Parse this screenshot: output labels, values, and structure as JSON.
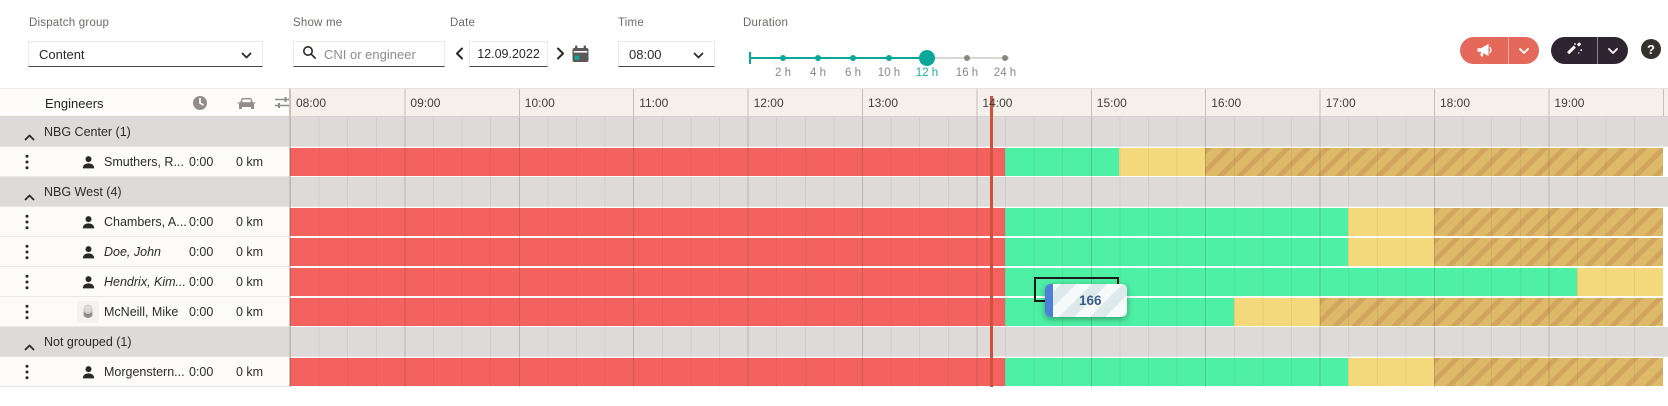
{
  "toolbar": {
    "dispatch_group": {
      "label": "Dispatch group",
      "value": "Content"
    },
    "show_me": {
      "label": "Show me",
      "placeholder": "CNI or engineer"
    },
    "date": {
      "label": "Date",
      "value": "12.09.2022"
    },
    "time": {
      "label": "Time",
      "value": "08:00"
    },
    "duration": {
      "label": "Duration",
      "ticks": [
        "2 h",
        "4 h",
        "6 h",
        "10 h",
        "12 h",
        "16 h",
        "24 h"
      ],
      "selected": "12 h",
      "selected_index": 4
    },
    "help_label": "?"
  },
  "grid": {
    "engineers_label": "Engineers",
    "header_icons": [
      "clock-icon",
      "car-icon",
      "filters-icon"
    ],
    "hours": [
      "08:00",
      "09:00",
      "10:00",
      "11:00",
      "12:00",
      "13:00",
      "14:00",
      "15:00",
      "16:00",
      "17:00",
      "18:00",
      "19:00"
    ],
    "current_time_hour": 14.13,
    "groups": [
      {
        "label": "NBG Center (1)",
        "engineers": [
          {
            "name": "Smuthers, R...",
            "italic": false,
            "avatar": "person",
            "time": "0:00",
            "distance": "0 km",
            "segments": [
              {
                "type": "elapsed",
                "start": 8,
                "end": 14.25
              },
              {
                "type": "available",
                "start": 14.25,
                "end": 15.25
              },
              {
                "type": "overtime",
                "start": 15.25,
                "end": 16
              },
              {
                "type": "unavailable",
                "start": 16,
                "end": 20
              }
            ]
          }
        ]
      },
      {
        "label": "NBG West (4)",
        "engineers": [
          {
            "name": "Chambers, A...",
            "italic": false,
            "avatar": "person",
            "time": "0:00",
            "distance": "0 km",
            "segments": [
              {
                "type": "elapsed",
                "start": 8,
                "end": 14.25
              },
              {
                "type": "available",
                "start": 14.25,
                "end": 17.25
              },
              {
                "type": "overtime",
                "start": 17.25,
                "end": 18
              },
              {
                "type": "unavailable",
                "start": 18,
                "end": 20
              }
            ]
          },
          {
            "name": "Doe, John",
            "italic": true,
            "avatar": "person",
            "time": "0:00",
            "distance": "0 km",
            "segments": [
              {
                "type": "elapsed",
                "start": 8,
                "end": 14.25
              },
              {
                "type": "available",
                "start": 14.25,
                "end": 17.25
              },
              {
                "type": "overtime",
                "start": 17.25,
                "end": 18
              },
              {
                "type": "unavailable",
                "start": 18,
                "end": 20
              }
            ]
          },
          {
            "name": "Hendrix, Kim...",
            "italic": true,
            "avatar": "person",
            "time": "0:00",
            "distance": "0 km",
            "segments": [
              {
                "type": "elapsed",
                "start": 8,
                "end": 14.25
              },
              {
                "type": "available",
                "start": 14.25,
                "end": 19.25
              },
              {
                "type": "overtime",
                "start": 19.25,
                "end": 20
              }
            ]
          },
          {
            "name": "McNeill, Mike",
            "italic": false,
            "avatar": "photo",
            "time": "0:00",
            "distance": "0 km",
            "segments": [
              {
                "type": "elapsed",
                "start": 8,
                "end": 14.25
              },
              {
                "type": "available",
                "start": 14.25,
                "end": 16.25
              },
              {
                "type": "overtime",
                "start": 16.25,
                "end": 17
              },
              {
                "type": "unavailable",
                "start": 17,
                "end": 20
              }
            ]
          }
        ]
      },
      {
        "label": "Not grouped (1)",
        "engineers": [
          {
            "name": "Morgenstern...",
            "italic": false,
            "avatar": "person",
            "time": "0:00",
            "distance": "0 km",
            "segments": [
              {
                "type": "elapsed",
                "start": 8,
                "end": 14.25
              },
              {
                "type": "available",
                "start": 14.25,
                "end": 17.25
              },
              {
                "type": "overtime",
                "start": 17.25,
                "end": 18
              },
              {
                "type": "unavailable",
                "start": 18,
                "end": 20
              }
            ]
          }
        ]
      }
    ],
    "drag_selection": {
      "row": "Hendrix, Kim...",
      "start_hour": 14.5,
      "end_hour": 15.25
    },
    "drag_tooltip": {
      "label": "166",
      "start_hour": 14.6,
      "end_hour": 15.32
    }
  },
  "colors": {
    "accent_teal": "#0ba79a",
    "coral_button": "#e5695b",
    "dark_button": "#2f2532",
    "elapsed": "#f4625f",
    "available": "#4ef0a5",
    "overtime": "#f3d87c",
    "unavailable": "#dcba68",
    "current_time_line": "#d0523e",
    "group_row_bg": "#dedad9",
    "timeline_header_bg": "#f6f0eb"
  }
}
